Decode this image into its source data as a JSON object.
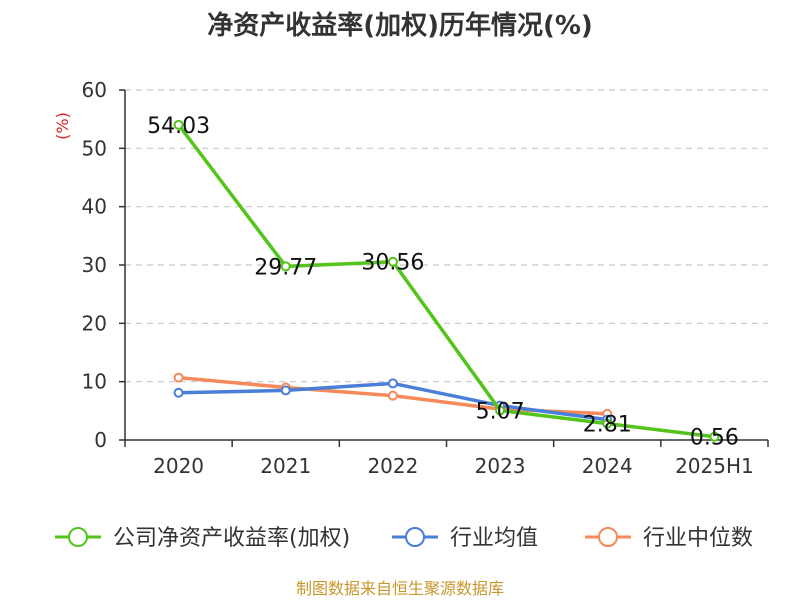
{
  "chart_data": {
    "type": "line",
    "title": "净资产收益率(加权)历年情况(%)",
    "ylabel": "(%)",
    "categories": [
      "2020",
      "2021",
      "2022",
      "2023",
      "2024",
      "2025H1"
    ],
    "ylim": [
      0,
      60
    ],
    "yticks": [
      0,
      10,
      20,
      30,
      40,
      50,
      60
    ],
    "grid": true,
    "legend_position": "bottom",
    "series": [
      {
        "name": "公司净资产收益率(加权)",
        "color": "#52c41a",
        "values": [
          54.03,
          29.77,
          30.56,
          5.07,
          2.81,
          0.56
        ],
        "labels": [
          "54.03",
          "29.77",
          "30.56",
          "5.07",
          "2.81",
          "0.56"
        ]
      },
      {
        "name": "行业均值",
        "color": "#4a7fd8",
        "values": [
          8.1,
          8.5,
          9.7,
          5.9,
          3.5,
          null
        ]
      },
      {
        "name": "行业中位数",
        "color": "#f5895a",
        "values": [
          10.7,
          9.0,
          7.6,
          5.3,
          4.5,
          null
        ]
      }
    ]
  },
  "source_note": "制图数据来自恒生聚源数据库"
}
